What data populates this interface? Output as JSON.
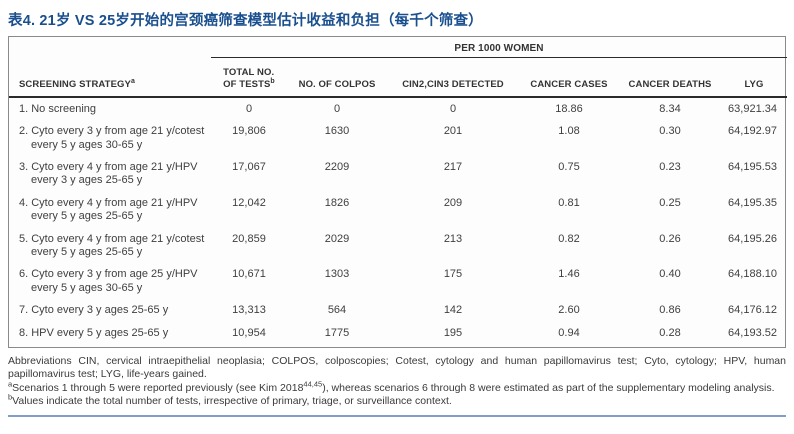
{
  "title": "表4. 21岁 VS 25岁开始的宫颈癌筛查模型估计收益和负担（每千个筛查）",
  "table": {
    "spanner": "PER 1000 WOMEN",
    "columns": {
      "strategy": "SCREENING STRATEGY",
      "strategy_sup": "a",
      "tests_line1": "TOTAL NO.",
      "tests_line2": "OF TESTS",
      "tests_sup": "b",
      "colpos": "NO. OF COLPOS",
      "cin": "CIN2,CIN3 DETECTED",
      "cases": "CANCER CASES",
      "deaths": "CANCER DEATHS",
      "lyg": "LYG"
    },
    "rows": [
      {
        "strategy": "1. No screening",
        "tests": "0",
        "colpos": "0",
        "cin": "0",
        "cases": "18.86",
        "deaths": "8.34",
        "lyg": "63,921.34"
      },
      {
        "strategy": "2. Cyto every 3 y from age 21 y/cotest every 5 y ages 30-65 y",
        "tests": "19,806",
        "colpos": "1630",
        "cin": "201",
        "cases": "1.08",
        "deaths": "0.30",
        "lyg": "64,192.97"
      },
      {
        "strategy": "3. Cyto every 4 y from age 21 y/HPV every 3 y ages 25-65 y",
        "tests": "17,067",
        "colpos": "2209",
        "cin": "217",
        "cases": "0.75",
        "deaths": "0.23",
        "lyg": "64,195.53"
      },
      {
        "strategy": "4. Cyto every 4 y from age 21 y/HPV every 5 y ages 25-65 y",
        "tests": "12,042",
        "colpos": "1826",
        "cin": "209",
        "cases": "0.81",
        "deaths": "0.25",
        "lyg": "64,195.35"
      },
      {
        "strategy": "5. Cyto every 4 y from age 21 y/cotest every 5 y ages 25-65 y",
        "tests": "20,859",
        "colpos": "2029",
        "cin": "213",
        "cases": "0.82",
        "deaths": "0.26",
        "lyg": "64,195.26"
      },
      {
        "strategy": "6. Cyto every 3 y from age 25 y/HPV every 5 y ages 30-65 y",
        "tests": "10,671",
        "colpos": "1303",
        "cin": "175",
        "cases": "1.46",
        "deaths": "0.40",
        "lyg": "64,188.10"
      },
      {
        "strategy": "7. Cyto every 3 y ages 25-65 y",
        "tests": "13,313",
        "colpos": "564",
        "cin": "142",
        "cases": "2.60",
        "deaths": "0.86",
        "lyg": "64,176.12"
      },
      {
        "strategy": "8. HPV every 5 y ages 25-65 y",
        "tests": "10,954",
        "colpos": "1775",
        "cin": "195",
        "cases": "0.94",
        "deaths": "0.28",
        "lyg": "64,193.52"
      }
    ]
  },
  "footnotes": {
    "abbreviations": "Abbreviations CIN, cervical intraepithelial neoplasia; COLPOS, colposcopies; Cotest, cytology and human papillomavirus test; Cyto, cytology; HPV, human papillomavirus test; LYG, life-years gained.",
    "a_sup": "a",
    "a_pre": "Scenarios 1 through 5 were reported previously (see Kim 2018",
    "a_refs": "44,45",
    "a_post": "), whereas scenarios 6 through 8 were estimated as part of the supplementary modeling analysis.",
    "b_sup": "b",
    "b_text": "Values indicate the total number of tests, irrespective of primary, triage, or surveillance context."
  },
  "colors": {
    "title_blue": "#1a4f8e",
    "rule_blue": "#7fa0c4",
    "header_line": "#2a2a2a"
  }
}
